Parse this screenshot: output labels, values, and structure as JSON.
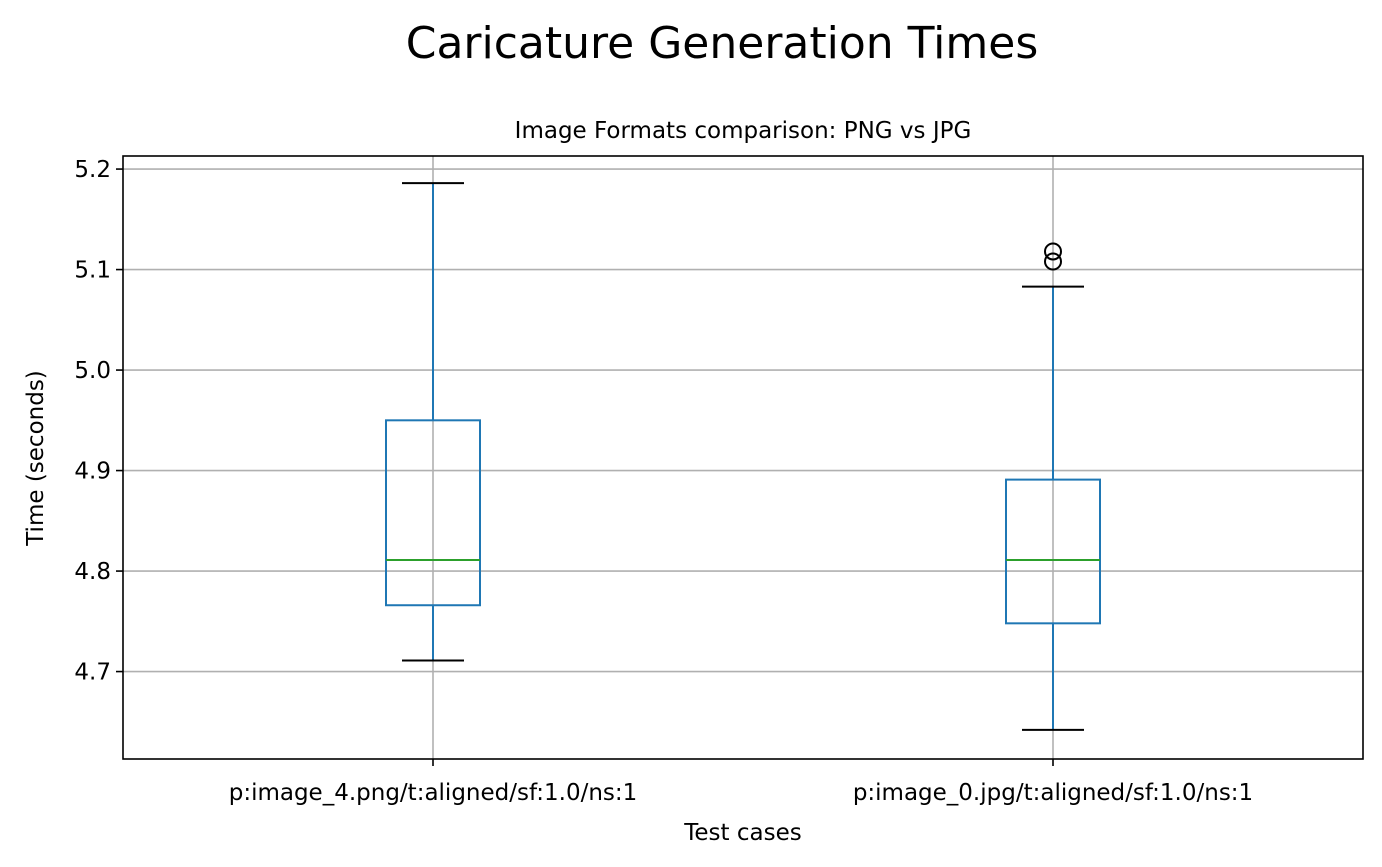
{
  "chart_data": {
    "type": "box",
    "title": "Caricature Generation Times",
    "subtitle": "Image Formats comparison: PNG vs JPG",
    "xlabel": "Test cases",
    "ylabel": "Time (seconds)",
    "ylim": [
      4.613,
      5.213
    ],
    "yticks": [
      4.7,
      4.8,
      4.9,
      5.0,
      5.1,
      5.2
    ],
    "ytick_labels": [
      "4.7",
      "4.8",
      "4.9",
      "5.0",
      "5.1",
      "5.2"
    ],
    "grid": true,
    "categories": [
      "p:image_4.png/t:aligned/sf:1.0/ns:1",
      "p:image_0.jpg/t:aligned/sf:1.0/ns:1"
    ],
    "boxes": [
      {
        "whisker_low": 4.711,
        "q1": 4.766,
        "median": 4.811,
        "q3": 4.95,
        "whisker_high": 5.186,
        "outliers": []
      },
      {
        "whisker_low": 4.642,
        "q1": 4.748,
        "median": 4.811,
        "q3": 4.891,
        "whisker_high": 5.083,
        "outliers": [
          5.108,
          5.118
        ]
      }
    ],
    "colors": {
      "box": "#1f77b4",
      "median": "#2ca02c",
      "caps": "#000000",
      "outliers": "#000000",
      "grid": "#b0b0b0"
    }
  }
}
